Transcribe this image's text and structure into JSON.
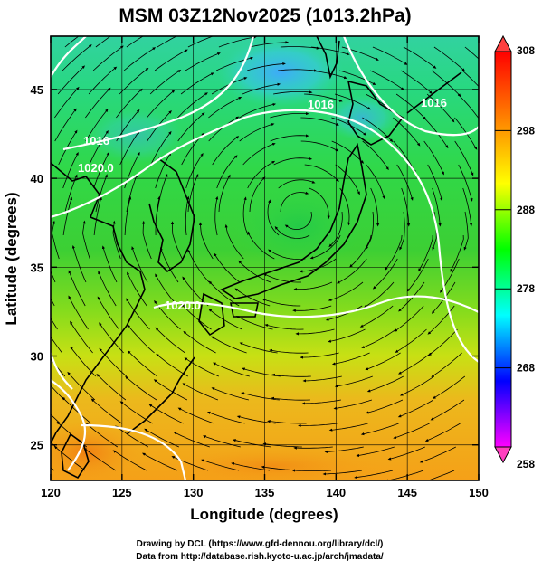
{
  "title": "MSM 03Z12Nov2025 (1013.2hPa)",
  "xlabel": "Longitude (degrees)",
  "ylabel": "Latitude  (degrees)",
  "credits": [
    "Drawing by DCL (https://www.gfd-dennou.org/library/dcl/)",
    "Data from http://database.rish.kyoto-u.ac.jp/arch/jmadata/"
  ],
  "map": {
    "lon_range": [
      120,
      150
    ],
    "lat_range": [
      23,
      48
    ],
    "lon_ticks": [
      120,
      125,
      130,
      135,
      140,
      145,
      150
    ],
    "lat_ticks": [
      25,
      30,
      35,
      40,
      45
    ]
  },
  "colorbar": {
    "min": 258,
    "max": 308,
    "labels": [
      308,
      298,
      288,
      278,
      268,
      258
    ],
    "colors": [
      "#ff00ff",
      "#0000ff",
      "#00ffff",
      "#00ff00",
      "#ffff00",
      "#ff8000",
      "#ff0000"
    ],
    "end_color_top": "#ff4040",
    "end_color_bottom": "#ff40c0"
  },
  "isobar_labels": [
    "1016",
    "1020.0",
    "1016",
    "1020.0",
    "1016"
  ],
  "icons": [
    "colorbar-arrow-up-icon",
    "colorbar-arrow-down-icon"
  ]
}
